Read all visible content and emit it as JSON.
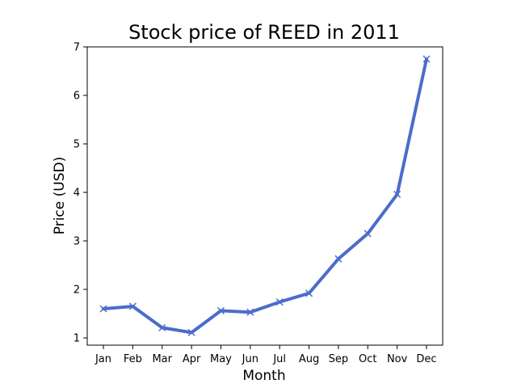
{
  "chart_data": {
    "type": "line",
    "title": "Stock price of REED in 2011",
    "xlabel": "Month",
    "ylabel": "Price (USD)",
    "categories": [
      "Jan",
      "Feb",
      "Mar",
      "Apr",
      "May",
      "Jun",
      "Jul",
      "Aug",
      "Sep",
      "Oct",
      "Nov",
      "Dec"
    ],
    "series": [
      {
        "values": [
          1.6,
          1.65,
          1.21,
          1.11,
          1.56,
          1.53,
          1.74,
          1.92,
          2.63,
          3.15,
          3.96,
          6.75
        ],
        "color": "#4c6ccc",
        "marker": "x"
      }
    ],
    "ylim": [
      0.85,
      7.0
    ],
    "yticks": [
      1,
      2,
      3,
      4,
      5,
      6,
      7
    ],
    "grid": false,
    "legend": "none"
  }
}
